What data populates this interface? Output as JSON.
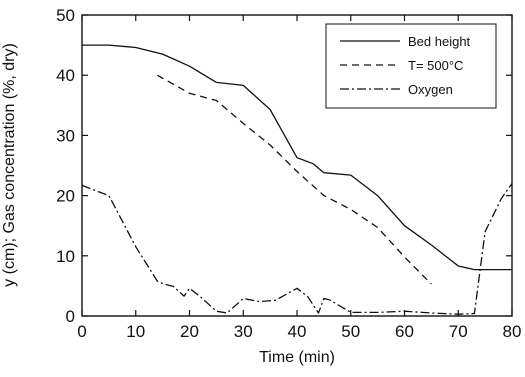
{
  "chart_data": {
    "type": "line",
    "xlabel": "Time (min)",
    "ylabel": "y (cm); Gas concentration (%, dry)",
    "xlim": [
      0,
      80
    ],
    "ylim": [
      0,
      50
    ],
    "xticks": [
      0,
      10,
      20,
      30,
      40,
      50,
      60,
      70,
      80
    ],
    "yticks": [
      0,
      10,
      20,
      30,
      40,
      50
    ],
    "grid": false,
    "legend_position": "top-right",
    "series": [
      {
        "name": "Bed height",
        "style": "solid",
        "x": [
          0,
          5,
          10,
          15,
          20,
          25,
          30,
          35,
          40,
          43,
          45,
          50,
          55,
          60,
          65,
          70,
          73,
          80
        ],
        "y": [
          45,
          45,
          44.6,
          43.5,
          41.5,
          38.8,
          38.3,
          34.3,
          26.3,
          25.3,
          23.8,
          23.4,
          20,
          15,
          11.8,
          8.3,
          7.7,
          7.7
        ]
      },
      {
        "name": "T= 500°C",
        "style": "dashed",
        "x": [
          14,
          20,
          25,
          30,
          35,
          40,
          45,
          50,
          55,
          60,
          65
        ],
        "y": [
          40,
          37,
          35.8,
          32,
          28.4,
          24,
          20,
          17.7,
          14.7,
          9.8,
          5.3
        ]
      },
      {
        "name": "Oxygen",
        "style": "dashdot",
        "x": [
          0,
          2,
          5,
          10,
          14,
          15,
          17,
          19,
          20,
          22,
          25,
          27,
          30,
          33,
          36,
          40,
          42,
          44,
          45,
          46,
          50,
          55,
          60,
          65,
          70,
          73,
          75,
          78,
          80
        ],
        "y": [
          21.7,
          21,
          20,
          11.5,
          5.8,
          5.4,
          4.9,
          3.3,
          4.6,
          3.2,
          0.8,
          0.5,
          2.9,
          2.4,
          2.6,
          4.6,
          3.2,
          0.5,
          2.9,
          2.7,
          0.6,
          0.6,
          0.8,
          0.5,
          0.3,
          0.4,
          14,
          19.5,
          22
        ]
      }
    ]
  }
}
